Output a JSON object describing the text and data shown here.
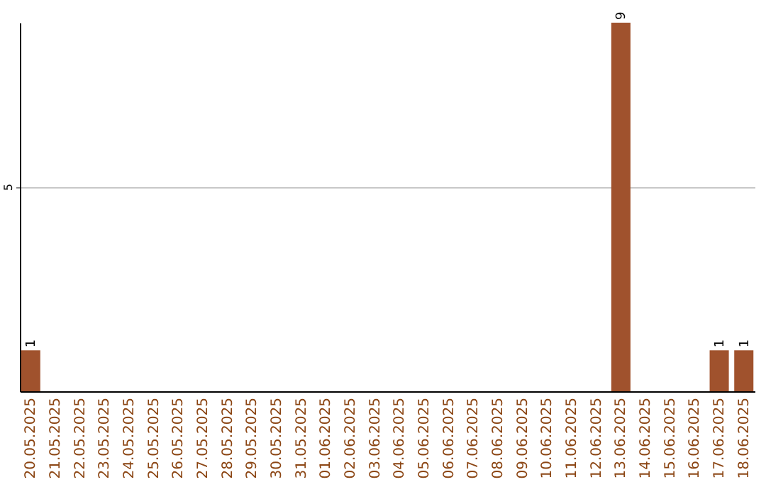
{
  "chart_data": {
    "type": "bar",
    "categories": [
      "20.05.2025",
      "21.05.2025",
      "22.05.2025",
      "23.05.2025",
      "24.05.2025",
      "25.05.2025",
      "26.05.2025",
      "27.05.2025",
      "28.05.2025",
      "29.05.2025",
      "30.05.2025",
      "31.05.2025",
      "01.06.2025",
      "02.06.2025",
      "03.06.2025",
      "04.06.2025",
      "05.06.2025",
      "06.06.2025",
      "07.06.2025",
      "08.06.2025",
      "09.06.2025",
      "10.06.2025",
      "11.06.2025",
      "12.06.2025",
      "13.06.2025",
      "14.06.2025",
      "15.06.2025",
      "16.06.2025",
      "17.06.2025",
      "18.06.2025"
    ],
    "values": [
      1,
      0,
      0,
      0,
      0,
      0,
      0,
      0,
      0,
      0,
      0,
      0,
      0,
      0,
      0,
      0,
      0,
      0,
      0,
      0,
      0,
      0,
      0,
      0,
      9,
      0,
      0,
      0,
      1,
      1
    ],
    "value_labels": [
      "1",
      null,
      null,
      null,
      null,
      null,
      null,
      null,
      null,
      null,
      null,
      null,
      null,
      null,
      null,
      null,
      null,
      null,
      null,
      null,
      null,
      null,
      null,
      null,
      "9",
      null,
      null,
      null,
      "1",
      "1"
    ],
    "color": "#a0522d",
    "ylim": [
      0,
      9
    ],
    "yticks": [
      5
    ],
    "grid": "y"
  }
}
